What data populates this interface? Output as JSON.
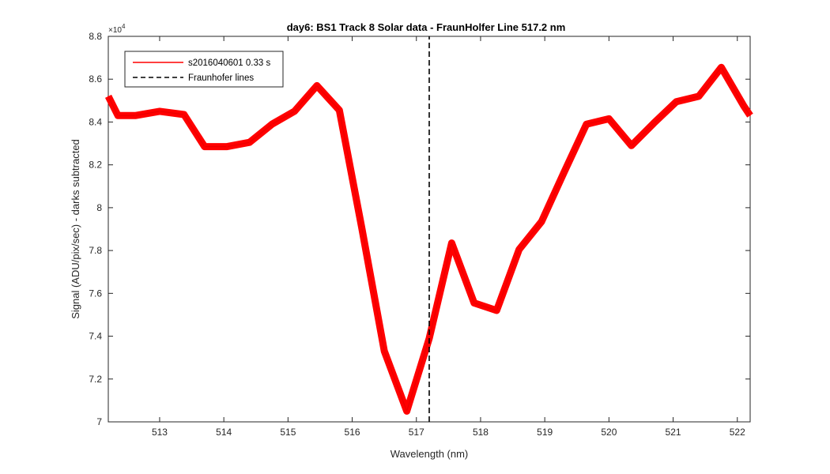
{
  "chart_data": {
    "type": "line",
    "title": "day6: BS1  Track 8 Solar data - FraunHolfer Line 517.2 nm",
    "xlabel": "Wavelength (nm)",
    "ylabel": "Signal (ADU/pix/sec) - darks subtracted",
    "y_exponent_label": "×10",
    "y_exponent_power": "4",
    "xlim": [
      512.2,
      522.2
    ],
    "ylim": [
      70000,
      88000
    ],
    "xticks": [
      513,
      514,
      515,
      516,
      517,
      518,
      519,
      520,
      521,
      522
    ],
    "yticks": [
      70000,
      72000,
      74000,
      76000,
      78000,
      80000,
      82000,
      84000,
      86000,
      88000
    ],
    "xtick_labels": [
      "513",
      "514",
      "515",
      "516",
      "517",
      "518",
      "519",
      "520",
      "521",
      "522"
    ],
    "ytick_labels": [
      "7",
      "7.2",
      "7.4",
      "7.6",
      "7.8",
      "8",
      "8.2",
      "8.4",
      "8.6",
      "8.8"
    ],
    "grid": false,
    "legend_position": "top-left",
    "series": [
      {
        "name": "s2016040601 0.33 s",
        "color": "#ff0000",
        "style": "solid",
        "x": [
          512.2,
          512.35,
          512.62,
          513.0,
          513.38,
          513.7,
          514.05,
          514.4,
          514.75,
          515.1,
          515.45,
          515.8,
          516.15,
          516.5,
          516.85,
          517.2,
          517.55,
          517.9,
          518.25,
          518.6,
          518.95,
          519.3,
          519.65,
          520.0,
          520.35,
          520.7,
          521.05,
          521.4,
          521.75,
          522.1,
          522.2
        ],
        "y": [
          85200,
          84300,
          84300,
          84500,
          84350,
          82850,
          82850,
          83050,
          83900,
          84500,
          85700,
          84550,
          79050,
          73300,
          70500,
          73900,
          78350,
          75550,
          75200,
          78050,
          79350,
          81650,
          83900,
          84150,
          82900,
          83950,
          84950,
          85200,
          86550,
          84750,
          84300
        ]
      },
      {
        "name": "Fraunhofer lines",
        "color": "#000000",
        "style": "dashed",
        "x": [
          517.2,
          517.2
        ],
        "y": [
          70000,
          88000
        ]
      }
    ]
  }
}
